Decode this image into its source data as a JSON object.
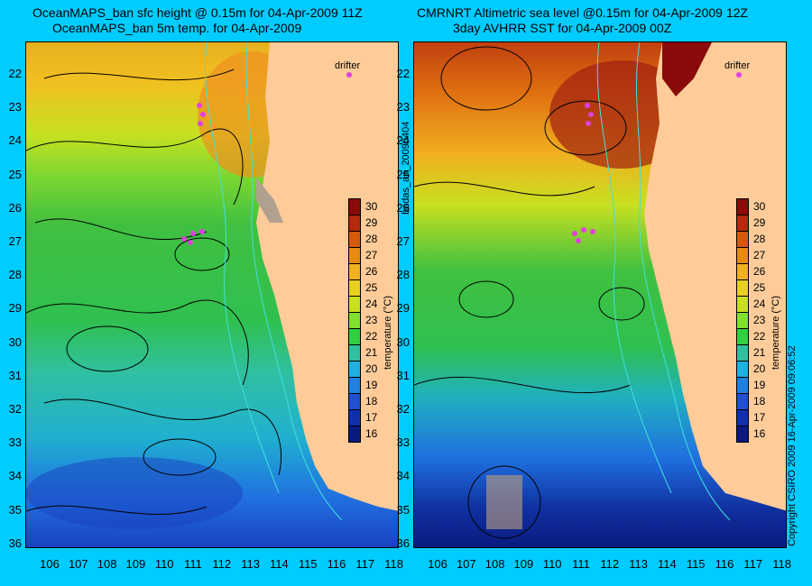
{
  "titles": {
    "left_line1": "OceanMAPS_ban sfc height @ 0.15m for 04-Apr-2009 11Z",
    "left_line2": "OceanMAPS_ban 5m temp. for 04-Apr-2009",
    "right_line1": "CMRNRT Altimetric sea level  @0.15m  for 04-Apr-2009 12Z",
    "right_line2": "3day AVHRR SST for 04-Apr-2009 00Z"
  },
  "side_text": {
    "map_name": "bodas_an_20090404",
    "copyright": "Copyright CSIRO 2009   16-Apr-2009 09:06:52"
  },
  "drifter_label": "drifter",
  "axes": {
    "lat_labels": [
      "22",
      "23",
      "24",
      "25",
      "26",
      "27",
      "28",
      "29",
      "30",
      "31",
      "32",
      "33",
      "34",
      "35",
      "36"
    ],
    "lon_labels": [
      "106",
      "107",
      "108",
      "109",
      "110",
      "111",
      "112",
      "113",
      "114",
      "115",
      "116",
      "117",
      "118"
    ]
  },
  "colorbar": {
    "title": "temperature (°C)",
    "ticks": [
      "30",
      "29",
      "28",
      "27",
      "26",
      "25",
      "24",
      "23",
      "22",
      "21",
      "20",
      "19",
      "18",
      "17",
      "16"
    ],
    "colors": [
      "#8b0a0a",
      "#b42a0a",
      "#d45a0a",
      "#e88a10",
      "#f0b020",
      "#e8d020",
      "#c8e020",
      "#80e030",
      "#30d040",
      "#30c0a0",
      "#20b0e0",
      "#2080e0",
      "#2050d0",
      "#1030b0",
      "#0a1a80"
    ]
  },
  "colors": {
    "background": "#00ccff",
    "land": "#ffcc99",
    "contour": "#000000",
    "bathymetry": "#40e0e0",
    "drifter": "#e040e0"
  }
}
